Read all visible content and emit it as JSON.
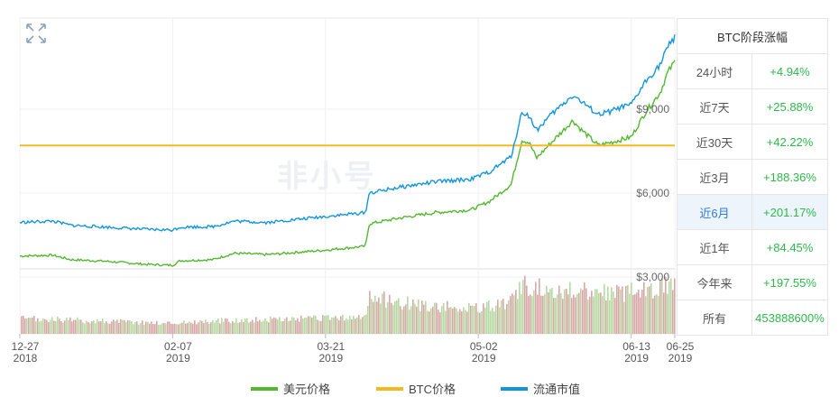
{
  "stats": {
    "title": "BTC阶段涨幅",
    "rows": [
      {
        "label": "24小时",
        "value": "+4.94%"
      },
      {
        "label": "近7天",
        "value": "+25.88%"
      },
      {
        "label": "近30天",
        "value": "+42.22%"
      },
      {
        "label": "近3月",
        "value": "+188.36%"
      },
      {
        "label": "近6月",
        "value": "+201.17%",
        "active": true
      },
      {
        "label": "近1年",
        "value": "+84.45%"
      },
      {
        "label": "今年来",
        "value": "+197.55%"
      },
      {
        "label": "所有",
        "value": "453888600%"
      }
    ]
  },
  "watermark": "非小号",
  "icons": {
    "expand": "expand-icon"
  },
  "colors": {
    "usd": "#52b82f",
    "btc": "#f5b921",
    "cap": "#1296db",
    "active_row": "#eef4fb"
  },
  "chart_data": {
    "type": "line",
    "x_ticks": [
      {
        "date": "2018-12-27",
        "line1": "12-27",
        "line2": "2018"
      },
      {
        "date": "2019-02-07",
        "line1": "02-07",
        "line2": "2019"
      },
      {
        "date": "2019-03-21",
        "line1": "03-21",
        "line2": "2019"
      },
      {
        "date": "2019-05-02",
        "line1": "05-02",
        "line2": "2019"
      },
      {
        "date": "2019-06-13",
        "line1": "06-13",
        "line2": "2019"
      },
      {
        "date": "2019-06-25",
        "line1": "06-25",
        "line2": "2019"
      }
    ],
    "y_ticks": [
      {
        "value": 9000,
        "label": "$9,000"
      },
      {
        "value": 6000,
        "label": "$6,000"
      },
      {
        "value": 3000,
        "label": "$3,000"
      }
    ],
    "ylim": [
      3000,
      10000
    ],
    "series": [
      {
        "name": "美元价格",
        "color": "#52b82f",
        "x": [
          "2018-12-27",
          "2019-01-05",
          "2019-01-10",
          "2019-01-20",
          "2019-01-31",
          "2019-02-07",
          "2019-02-09",
          "2019-02-18",
          "2019-02-24",
          "2019-03-05",
          "2019-03-20",
          "2019-04-01",
          "2019-04-02",
          "2019-04-10",
          "2019-04-20",
          "2019-04-30",
          "2019-05-05",
          "2019-05-11",
          "2019-05-14",
          "2019-05-16",
          "2019-05-18",
          "2019-05-22",
          "2019-05-28",
          "2019-05-30",
          "2019-06-04",
          "2019-06-07",
          "2019-06-10",
          "2019-06-13",
          "2019-06-17",
          "2019-06-21",
          "2019-06-23",
          "2019-06-25"
        ],
        "values": [
          3750,
          3780,
          3620,
          3560,
          3450,
          3420,
          3580,
          3620,
          3850,
          3800,
          3950,
          4100,
          4900,
          5100,
          5300,
          5400,
          5700,
          6300,
          7900,
          7800,
          7250,
          7800,
          8600,
          8300,
          7700,
          7800,
          7900,
          8000,
          8900,
          9600,
          10300,
          10700
        ]
      },
      {
        "name": "BTC价格",
        "color": "#f5b921",
        "x": [
          "2018-12-27",
          "2019-06-25"
        ],
        "values": [
          7700,
          7700
        ]
      },
      {
        "name": "流通市值",
        "color": "#1296db",
        "x": [
          "2018-12-27",
          "2019-01-05",
          "2019-01-10",
          "2019-01-20",
          "2019-01-31",
          "2019-02-07",
          "2019-02-09",
          "2019-02-18",
          "2019-02-24",
          "2019-03-05",
          "2019-03-20",
          "2019-04-01",
          "2019-04-02",
          "2019-04-10",
          "2019-04-20",
          "2019-04-30",
          "2019-05-05",
          "2019-05-11",
          "2019-05-14",
          "2019-05-16",
          "2019-05-18",
          "2019-05-22",
          "2019-05-28",
          "2019-05-30",
          "2019-06-04",
          "2019-06-07",
          "2019-06-10",
          "2019-06-13",
          "2019-06-17",
          "2019-06-21",
          "2019-06-23",
          "2019-06-25"
        ],
        "values": [
          4950,
          5000,
          4850,
          4780,
          4700,
          4680,
          4780,
          4800,
          5000,
          4950,
          5150,
          5300,
          6000,
          6200,
          6400,
          6500,
          6750,
          7300,
          8900,
          8750,
          8250,
          8800,
          9500,
          9300,
          8800,
          8900,
          9050,
          9150,
          10000,
          10600,
          11200,
          11600
        ]
      }
    ],
    "volume": {
      "x": [
        "2018-12-27",
        "2019-01-15",
        "2019-02-05",
        "2019-02-25",
        "2019-03-15",
        "2019-04-01",
        "2019-04-02",
        "2019-04-15",
        "2019-04-30",
        "2019-05-10",
        "2019-05-14",
        "2019-05-20",
        "2019-05-31",
        "2019-06-10",
        "2019-06-20",
        "2019-06-25"
      ],
      "values": [
        0.25,
        0.22,
        0.18,
        0.23,
        0.25,
        0.28,
        0.62,
        0.48,
        0.42,
        0.5,
        0.8,
        0.75,
        0.72,
        0.68,
        0.78,
        0.9
      ]
    },
    "legend": [
      {
        "name": "美元价格",
        "color": "#52b82f"
      },
      {
        "name": "BTC价格",
        "color": "#f5b921"
      },
      {
        "name": "流通市值",
        "color": "#1296db"
      }
    ],
    "legend_position": "bottom",
    "grid": true
  }
}
